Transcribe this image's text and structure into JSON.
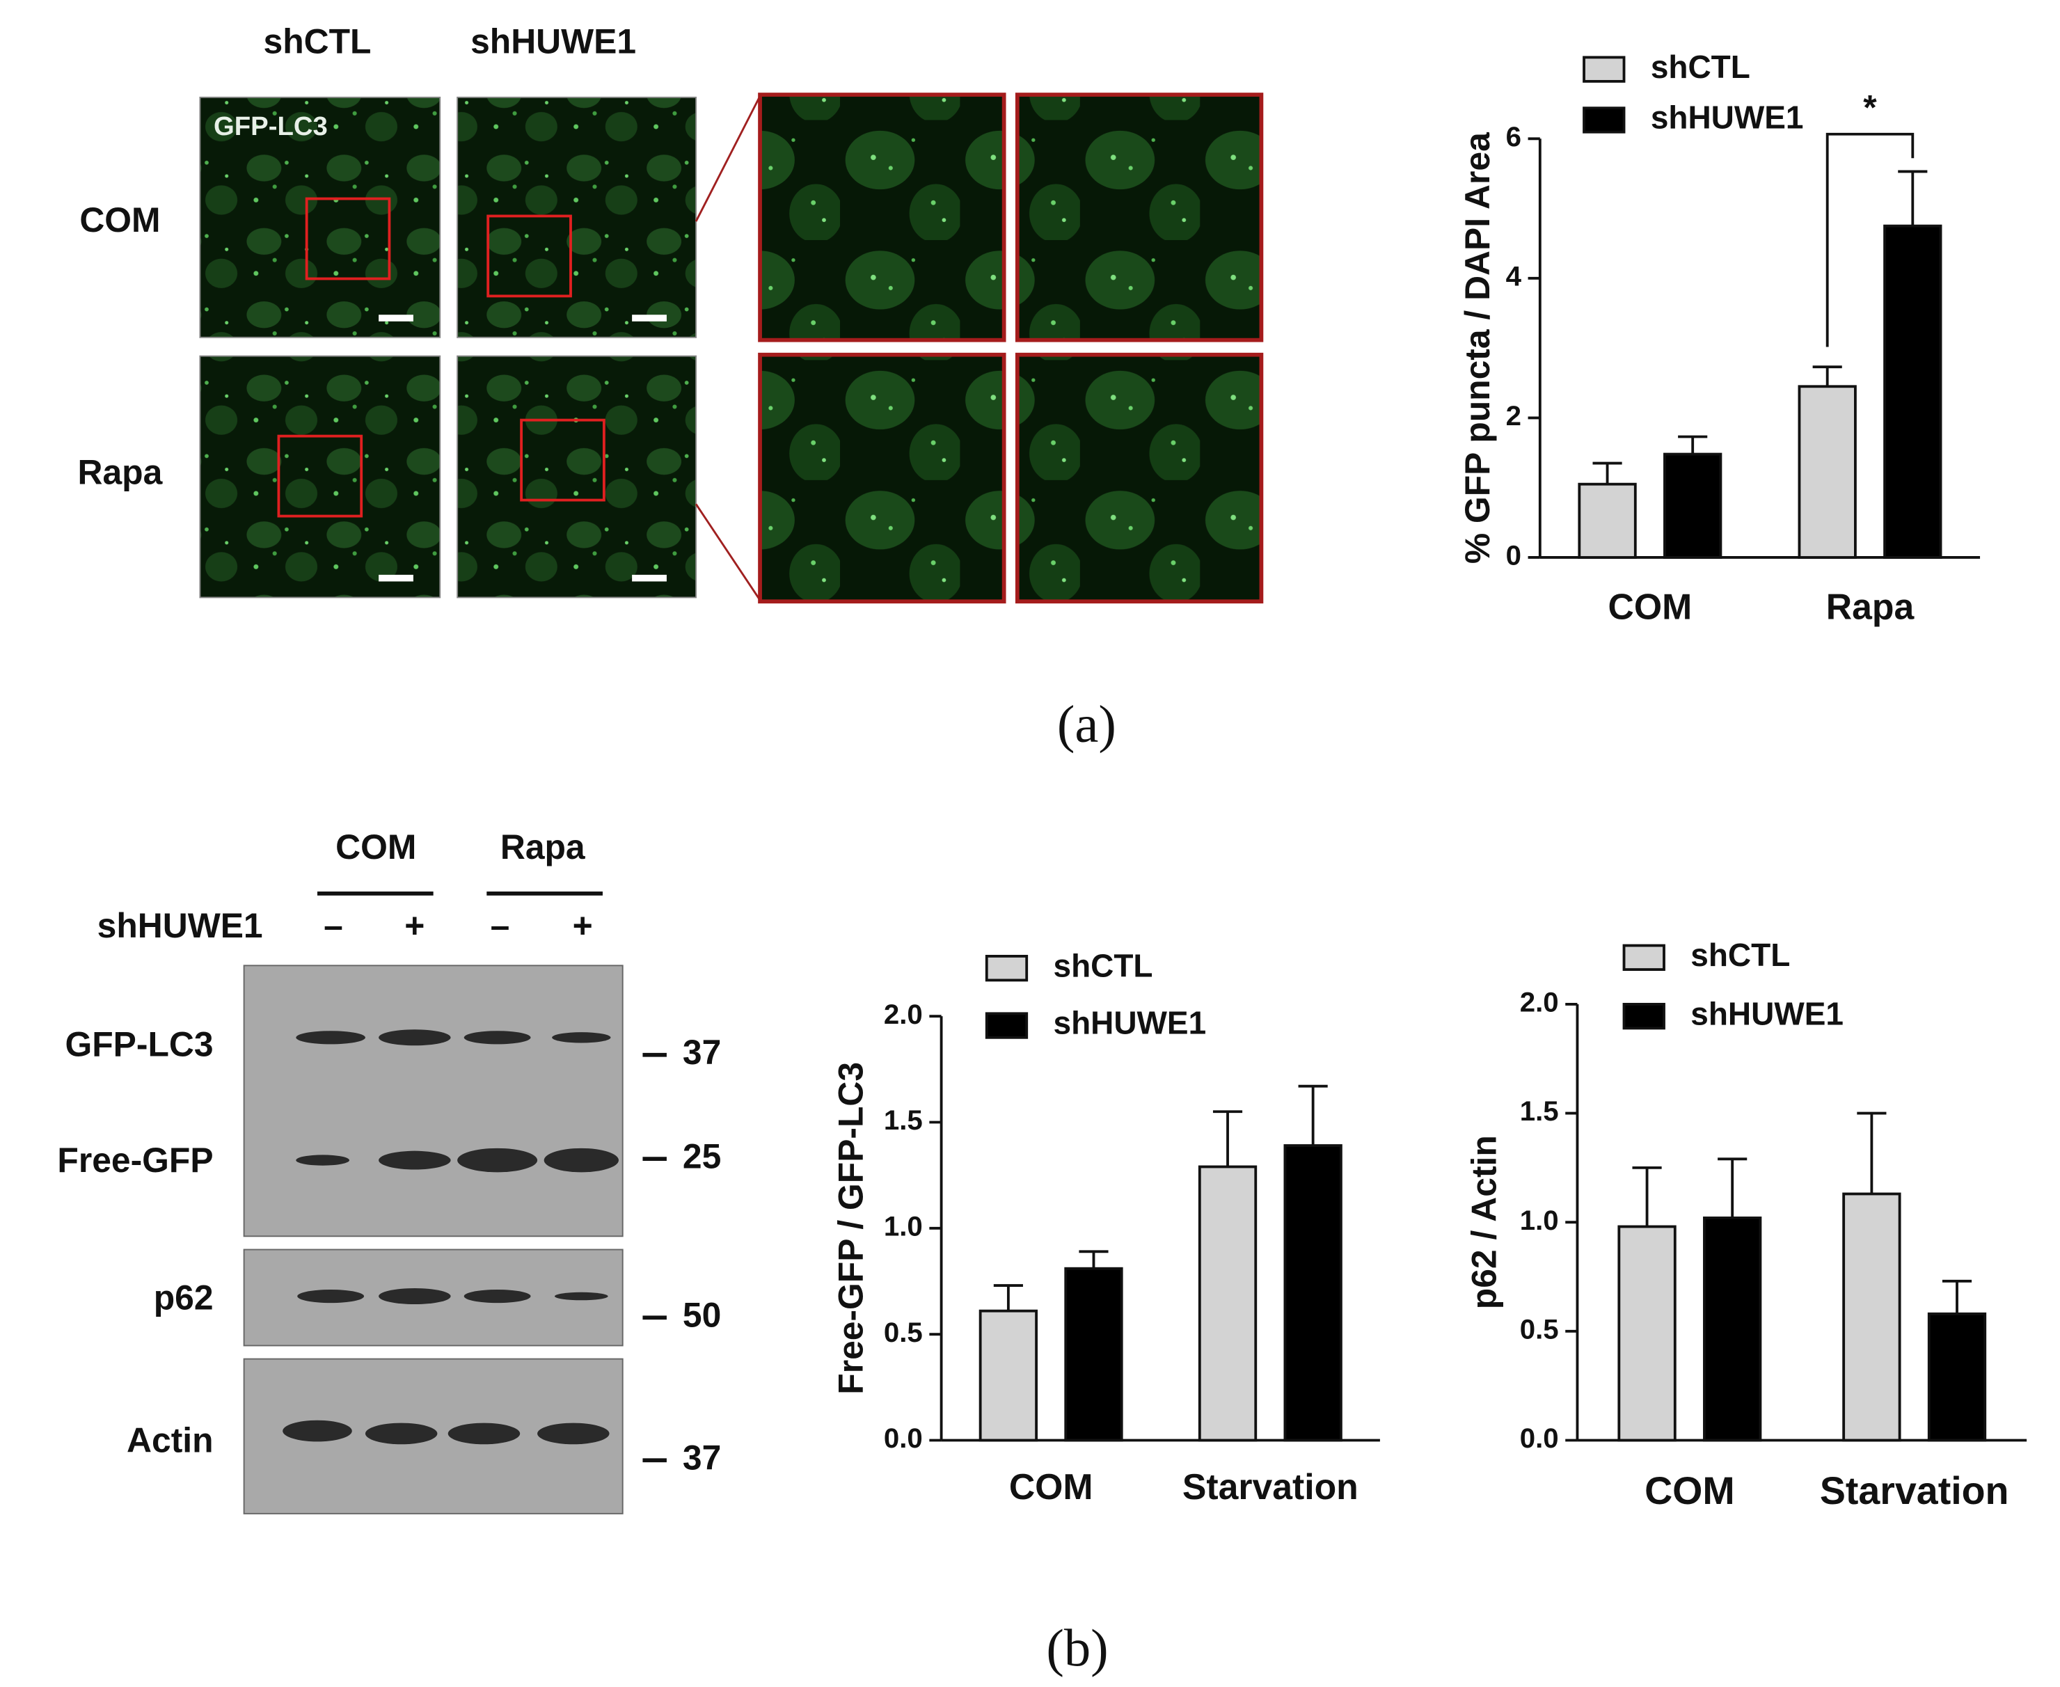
{
  "microscopy": {
    "columns": [
      "shCTL",
      "shHUWE1"
    ],
    "rows": [
      "COM",
      "Rapa"
    ],
    "stain": "GFP-LC3"
  },
  "chart_data": [
    {
      "type": "bar",
      "y_label": "% GFP puncta / DAPI  Area",
      "categories": [
        "COM",
        "Rapa"
      ],
      "series": [
        {
          "name": "shCTL",
          "color": "#d3d3d3",
          "values": [
            1.05,
            2.45
          ],
          "errors": [
            0.3,
            0.28
          ]
        },
        {
          "name": "shHUWE1",
          "color": "#000000",
          "values": [
            1.48,
            4.75
          ],
          "errors": [
            0.25,
            0.78
          ]
        }
      ],
      "ylim": [
        0,
        6
      ],
      "yticks": [
        0,
        2,
        4,
        6
      ],
      "legend": "upper left",
      "annotation": "*"
    },
    {
      "type": "bar",
      "y_label": "Free-GFP / GFP-LC3",
      "categories": [
        "COM",
        "Starvation"
      ],
      "series": [
        {
          "name": "shCTL",
          "color": "#d3d3d3",
          "values": [
            0.61,
            1.29
          ],
          "errors": [
            0.12,
            0.26
          ]
        },
        {
          "name": "shHUWE1",
          "color": "#000000",
          "values": [
            0.81,
            1.39
          ],
          "errors": [
            0.08,
            0.28
          ]
        }
      ],
      "ylim": [
        0,
        2
      ],
      "yticks": [
        {
          "value": 0,
          "label": "0.0"
        },
        {
          "value": 0.5,
          "label": "0.5"
        },
        {
          "value": 1,
          "label": "1.0"
        },
        {
          "value": 1.5,
          "label": "1.5"
        },
        {
          "value": 2,
          "label": "2.0"
        }
      ],
      "legend": "upper left"
    },
    {
      "type": "bar",
      "y_label": "p62 / Actin",
      "categories": [
        "COM",
        "Starvation"
      ],
      "series": [
        {
          "name": "shCTL",
          "color": "#d3d3d3",
          "values": [
            0.98,
            1.13
          ],
          "errors": [
            0.27,
            0.37
          ]
        },
        {
          "name": "shHUWE1",
          "color": "#000000",
          "values": [
            1.02,
            0.58
          ],
          "errors": [
            0.27,
            0.15
          ]
        }
      ],
      "ylim": [
        0,
        2
      ],
      "yticks": [
        {
          "value": 0,
          "label": "0.0"
        },
        {
          "value": 0.5,
          "label": "0.5"
        },
        {
          "value": 1,
          "label": "1.0"
        },
        {
          "value": 1.5,
          "label": "1.5"
        },
        {
          "value": 2,
          "label": "2.0"
        }
      ],
      "legend": "upper left"
    }
  ],
  "western_blot": {
    "groups": [
      "COM",
      "Rapa"
    ],
    "row_label": "shHUWE1",
    "signs": [
      "–",
      "+",
      "–",
      "+"
    ],
    "bands": [
      "GFP-LC3",
      "Free-GFP",
      "p62",
      "Actin"
    ],
    "markers": [
      "37",
      "25",
      "50",
      "37"
    ]
  },
  "captions": [
    "(a)",
    "(b)"
  ]
}
